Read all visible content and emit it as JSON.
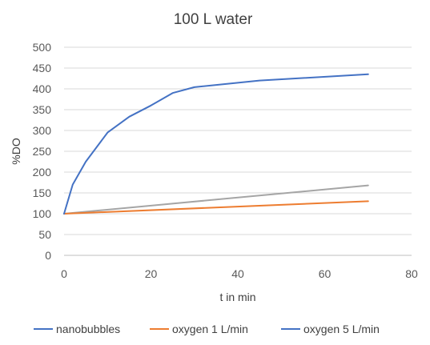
{
  "chart_data": {
    "type": "line",
    "title": "100 L water",
    "xlabel": "t in min",
    "ylabel": "%DO",
    "xlim": [
      0,
      80
    ],
    "ylim": [
      0,
      500
    ],
    "xticks": [
      0,
      20,
      40,
      60,
      80
    ],
    "yticks": [
      0,
      50,
      100,
      150,
      200,
      250,
      300,
      350,
      400,
      450,
      500
    ],
    "grid": "horizontal",
    "legend": "bottom",
    "series": [
      {
        "name": "nanobubbles",
        "color": "#4472C4",
        "x": [
          0,
          2,
          5,
          10,
          15,
          20,
          25,
          30,
          45,
          70
        ],
        "y": [
          100,
          170,
          225,
          295,
          333,
          360,
          390,
          404,
          420,
          435
        ]
      },
      {
        "name": "oxygen 1 L/min",
        "color": "#ED7D31",
        "x": [
          0,
          70
        ],
        "y": [
          100,
          130
        ]
      },
      {
        "name": "oxygen 5 L/min",
        "color": "#A5A5A5",
        "legend_color": "#4472C4",
        "x": [
          0,
          70
        ],
        "y": [
          100,
          168
        ]
      }
    ]
  }
}
